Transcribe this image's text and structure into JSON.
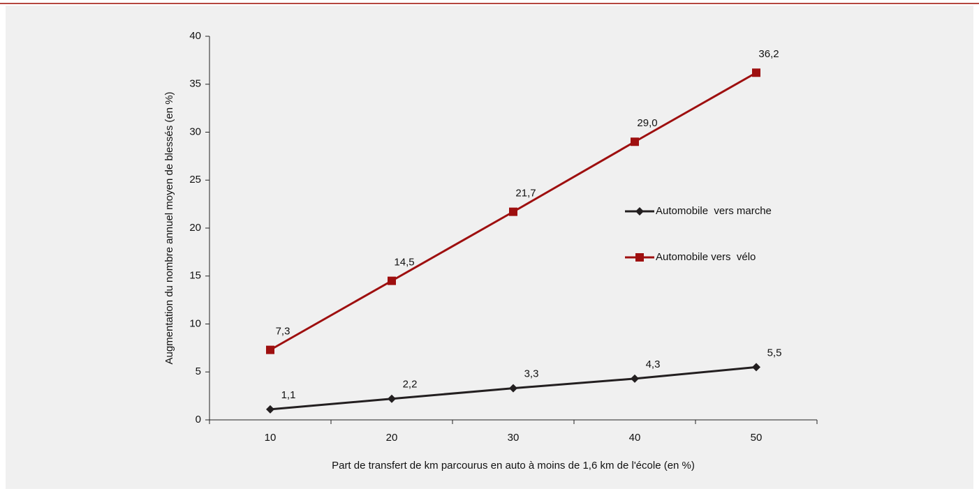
{
  "chart_data": {
    "type": "line",
    "x_label": "Part de transfert de km parcourus en auto à moins de 1,6 km de l'école (en %)",
    "y_label": "Augmentation du nombre annuel moyen de blessés (en %)",
    "categories": [
      "10",
      "20",
      "30",
      "40",
      "50"
    ],
    "series": [
      {
        "name": "Automobile  vers marche",
        "color": "#231f20",
        "marker": "diamond",
        "values": [
          1.1,
          2.2,
          3.3,
          4.3,
          5.5
        ],
        "value_labels": [
          "1,1",
          "2,2",
          "3,3",
          "4,3",
          "5,5"
        ]
      },
      {
        "name": "Automobile vers  vélo",
        "color": "#9e0f0f",
        "marker": "square",
        "values": [
          7.3,
          14.5,
          21.7,
          29.0,
          36.2
        ],
        "value_labels": [
          "7,3",
          "14,5",
          "21,7",
          "29,0",
          "36,2"
        ]
      }
    ],
    "ylim": [
      0,
      40
    ],
    "yticks": [
      0,
      5,
      10,
      15,
      20,
      25,
      30,
      35,
      40
    ],
    "legend": "right"
  }
}
